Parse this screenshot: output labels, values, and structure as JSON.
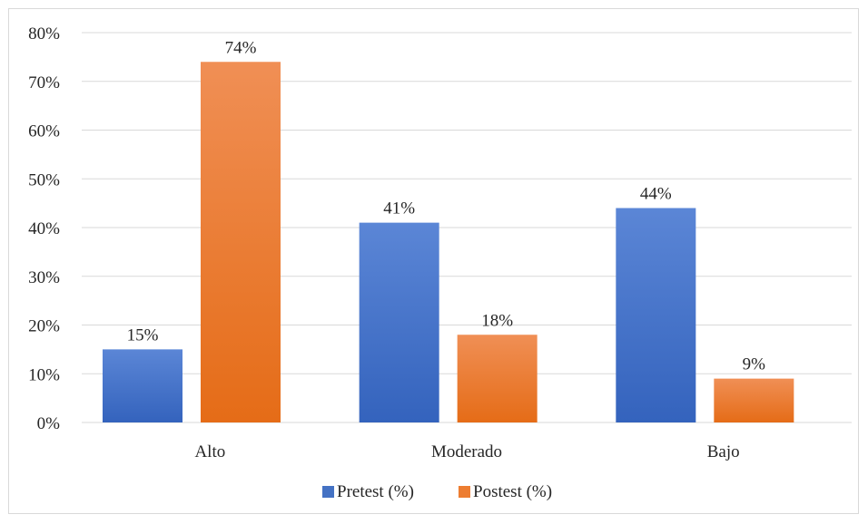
{
  "chart_data": {
    "type": "bar",
    "categories": [
      "Alto",
      "Moderado",
      "Bajo"
    ],
    "series": [
      {
        "name": "Pretest (%)",
        "values": [
          15,
          41,
          44
        ],
        "labels": [
          "15%",
          "41%",
          "44%"
        ],
        "color": "#4472c4"
      },
      {
        "name": "Postest (%)",
        "values": [
          74,
          18,
          9
        ],
        "labels": [
          "74%",
          "18%",
          "9%"
        ],
        "color": "#ed7d31"
      }
    ],
    "ylim": [
      0,
      80
    ],
    "yticks": [
      0,
      10,
      20,
      30,
      40,
      50,
      60,
      70,
      80
    ],
    "ytick_labels": [
      "0%",
      "10%",
      "20%",
      "30%",
      "40%",
      "50%",
      "60%",
      "70%",
      "80%"
    ],
    "grid": true,
    "legend_position": "bottom"
  }
}
